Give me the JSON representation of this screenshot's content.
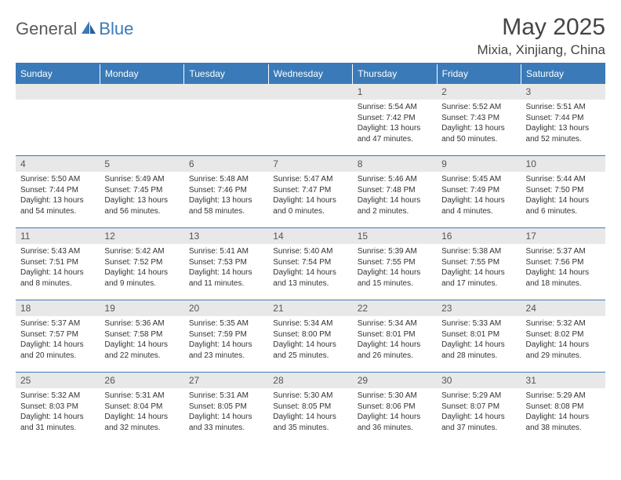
{
  "brand": {
    "part1": "General",
    "part2": "Blue"
  },
  "title": "May 2025",
  "location": "Mixia, Xinjiang, China",
  "colors": {
    "header_bg": "#3a7ab8",
    "header_text": "#ffffff",
    "daynum_bg": "#e8e8e8",
    "border": "#3a7ab8",
    "page_bg": "#ffffff",
    "body_text": "#333333"
  },
  "weekdays": [
    "Sunday",
    "Monday",
    "Tuesday",
    "Wednesday",
    "Thursday",
    "Friday",
    "Saturday"
  ],
  "first_weekday_index": 4,
  "days": [
    {
      "n": 1,
      "sunrise": "5:54 AM",
      "sunset": "7:42 PM",
      "daylight": "13 hours and 47 minutes."
    },
    {
      "n": 2,
      "sunrise": "5:52 AM",
      "sunset": "7:43 PM",
      "daylight": "13 hours and 50 minutes."
    },
    {
      "n": 3,
      "sunrise": "5:51 AM",
      "sunset": "7:44 PM",
      "daylight": "13 hours and 52 minutes."
    },
    {
      "n": 4,
      "sunrise": "5:50 AM",
      "sunset": "7:44 PM",
      "daylight": "13 hours and 54 minutes."
    },
    {
      "n": 5,
      "sunrise": "5:49 AM",
      "sunset": "7:45 PM",
      "daylight": "13 hours and 56 minutes."
    },
    {
      "n": 6,
      "sunrise": "5:48 AM",
      "sunset": "7:46 PM",
      "daylight": "13 hours and 58 minutes."
    },
    {
      "n": 7,
      "sunrise": "5:47 AM",
      "sunset": "7:47 PM",
      "daylight": "14 hours and 0 minutes."
    },
    {
      "n": 8,
      "sunrise": "5:46 AM",
      "sunset": "7:48 PM",
      "daylight": "14 hours and 2 minutes."
    },
    {
      "n": 9,
      "sunrise": "5:45 AM",
      "sunset": "7:49 PM",
      "daylight": "14 hours and 4 minutes."
    },
    {
      "n": 10,
      "sunrise": "5:44 AM",
      "sunset": "7:50 PM",
      "daylight": "14 hours and 6 minutes."
    },
    {
      "n": 11,
      "sunrise": "5:43 AM",
      "sunset": "7:51 PM",
      "daylight": "14 hours and 8 minutes."
    },
    {
      "n": 12,
      "sunrise": "5:42 AM",
      "sunset": "7:52 PM",
      "daylight": "14 hours and 9 minutes."
    },
    {
      "n": 13,
      "sunrise": "5:41 AM",
      "sunset": "7:53 PM",
      "daylight": "14 hours and 11 minutes."
    },
    {
      "n": 14,
      "sunrise": "5:40 AM",
      "sunset": "7:54 PM",
      "daylight": "14 hours and 13 minutes."
    },
    {
      "n": 15,
      "sunrise": "5:39 AM",
      "sunset": "7:55 PM",
      "daylight": "14 hours and 15 minutes."
    },
    {
      "n": 16,
      "sunrise": "5:38 AM",
      "sunset": "7:55 PM",
      "daylight": "14 hours and 17 minutes."
    },
    {
      "n": 17,
      "sunrise": "5:37 AM",
      "sunset": "7:56 PM",
      "daylight": "14 hours and 18 minutes."
    },
    {
      "n": 18,
      "sunrise": "5:37 AM",
      "sunset": "7:57 PM",
      "daylight": "14 hours and 20 minutes."
    },
    {
      "n": 19,
      "sunrise": "5:36 AM",
      "sunset": "7:58 PM",
      "daylight": "14 hours and 22 minutes."
    },
    {
      "n": 20,
      "sunrise": "5:35 AM",
      "sunset": "7:59 PM",
      "daylight": "14 hours and 23 minutes."
    },
    {
      "n": 21,
      "sunrise": "5:34 AM",
      "sunset": "8:00 PM",
      "daylight": "14 hours and 25 minutes."
    },
    {
      "n": 22,
      "sunrise": "5:34 AM",
      "sunset": "8:01 PM",
      "daylight": "14 hours and 26 minutes."
    },
    {
      "n": 23,
      "sunrise": "5:33 AM",
      "sunset": "8:01 PM",
      "daylight": "14 hours and 28 minutes."
    },
    {
      "n": 24,
      "sunrise": "5:32 AM",
      "sunset": "8:02 PM",
      "daylight": "14 hours and 29 minutes."
    },
    {
      "n": 25,
      "sunrise": "5:32 AM",
      "sunset": "8:03 PM",
      "daylight": "14 hours and 31 minutes."
    },
    {
      "n": 26,
      "sunrise": "5:31 AM",
      "sunset": "8:04 PM",
      "daylight": "14 hours and 32 minutes."
    },
    {
      "n": 27,
      "sunrise": "5:31 AM",
      "sunset": "8:05 PM",
      "daylight": "14 hours and 33 minutes."
    },
    {
      "n": 28,
      "sunrise": "5:30 AM",
      "sunset": "8:05 PM",
      "daylight": "14 hours and 35 minutes."
    },
    {
      "n": 29,
      "sunrise": "5:30 AM",
      "sunset": "8:06 PM",
      "daylight": "14 hours and 36 minutes."
    },
    {
      "n": 30,
      "sunrise": "5:29 AM",
      "sunset": "8:07 PM",
      "daylight": "14 hours and 37 minutes."
    },
    {
      "n": 31,
      "sunrise": "5:29 AM",
      "sunset": "8:08 PM",
      "daylight": "14 hours and 38 minutes."
    }
  ]
}
